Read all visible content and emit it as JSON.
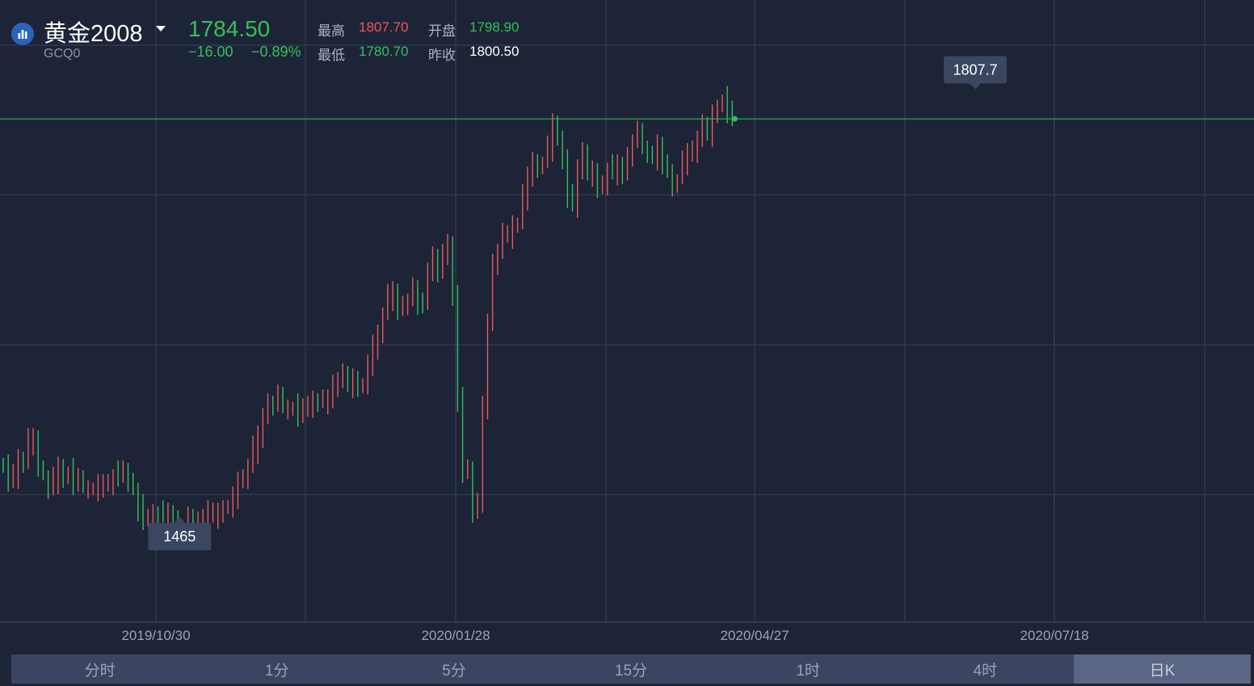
{
  "header": {
    "name": "黄金2008",
    "code": "GCQ0",
    "price": "1784.50",
    "change": "−16.00",
    "change_pct": "−0.89%",
    "high_label": "最高",
    "high_value": "1807.70",
    "open_label": "开盘",
    "open_value": "1798.90",
    "low_label": "最低",
    "low_value": "1780.70",
    "prev_label": "昨收",
    "prev_value": "1800.50"
  },
  "tabs": [
    {
      "label": "分时"
    },
    {
      "label": "1分"
    },
    {
      "label": "5分"
    },
    {
      "label": "15分"
    },
    {
      "label": "1时"
    },
    {
      "label": "4时"
    },
    {
      "label": "日K",
      "active": true
    }
  ],
  "colors": {
    "up": "#ea5a5a",
    "down": "#33c15a",
    "background": "#1d2437",
    "grid": "#3a4256"
  },
  "chart_data": {
    "type": "candlestick",
    "x_tick_labels": [
      "2019/10/30",
      "2020/01/28",
      "2020/04/27",
      "2020/07/18"
    ],
    "y_range": [
      1380,
      1880
    ],
    "current_price_line": 1784.5,
    "annotations": [
      {
        "label": "1807.7",
        "value": 1807.7
      },
      {
        "label": "1465",
        "value": 1465
      }
    ],
    "closes": [
      1504,
      1494,
      1498,
      1512,
      1508,
      1524,
      1526,
      1504,
      1498,
      1488,
      1494,
      1504,
      1496,
      1500,
      1492,
      1494,
      1488,
      1488,
      1488,
      1488,
      1490,
      1492,
      1498,
      1496,
      1500,
      1494,
      1488,
      1472,
      1462,
      1462,
      1468,
      1466,
      1464,
      1466,
      1464,
      1456,
      1456,
      1462,
      1460,
      1462,
      1466,
      1466,
      1466,
      1468,
      1472,
      1474,
      1478,
      1492,
      1496,
      1506,
      1518,
      1528,
      1544,
      1558,
      1556,
      1560,
      1552,
      1552,
      1552,
      1548,
      1550,
      1554,
      1560,
      1556,
      1556,
      1558,
      1572,
      1576,
      1576,
      1570,
      1576,
      1568,
      1572,
      1584,
      1602,
      1612,
      1628,
      1640,
      1644,
      1630,
      1636,
      1640,
      1646,
      1638,
      1636,
      1664,
      1670,
      1660,
      1676,
      1686,
      1640,
      1560,
      1500,
      1504,
      1470,
      1472,
      1552,
      1620,
      1670,
      1680,
      1690,
      1690,
      1700,
      1700,
      1720,
      1736,
      1750,
      1748,
      1750,
      1760,
      1780,
      1770,
      1748,
      1722,
      1716,
      1744,
      1760,
      1740,
      1740,
      1728,
      1732,
      1744,
      1742,
      1746,
      1740,
      1756,
      1768,
      1772,
      1760,
      1758,
      1754,
      1760,
      1748,
      1742,
      1732,
      1736,
      1748,
      1756,
      1760,
      1770,
      1776,
      1772,
      1788,
      1794,
      1800,
      1790,
      1784.5
    ]
  }
}
